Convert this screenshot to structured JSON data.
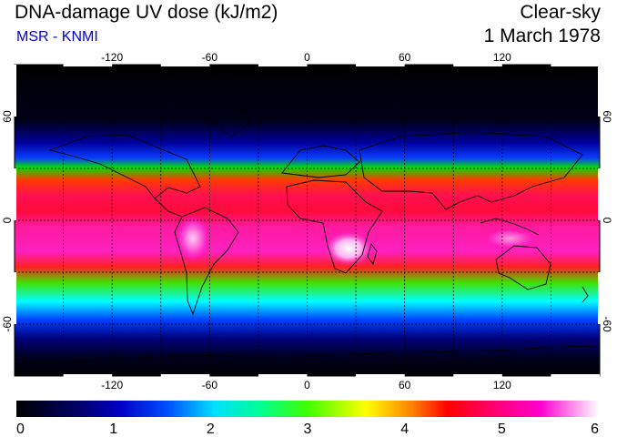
{
  "header": {
    "title": "DNA-damage UV dose (kJ/m2)",
    "subtitle": "MSR - KNMI",
    "sky_condition": "Clear-sky",
    "date": "1 March 1978"
  },
  "map": {
    "projection": "equirectangular",
    "lon_range": [
      -180,
      180
    ],
    "lat_range": [
      -90,
      90
    ],
    "lon_ticks": [
      "-120",
      "-60",
      "0",
      "60",
      "120"
    ],
    "lon_tick_values": [
      -120,
      -60,
      0,
      60,
      120
    ],
    "lat_ticks": [
      "60",
      "0",
      "-60"
    ],
    "lat_tick_values": [
      60,
      0,
      -60
    ],
    "grid": "dashed",
    "coastlines": true
  },
  "colorbar": {
    "ticks": [
      "0",
      "1",
      "2",
      "3",
      "4",
      "5",
      "6"
    ],
    "range": [
      0,
      6
    ],
    "colors": [
      "#000000",
      "#0000a0",
      "#0000ff",
      "#00ffff",
      "#00ff00",
      "#ffff00",
      "#ff0000",
      "#ff0080",
      "#ff00ff",
      "#ffffff"
    ]
  },
  "colors": {
    "title": "#000000",
    "subtitle": "#0000dd"
  }
}
